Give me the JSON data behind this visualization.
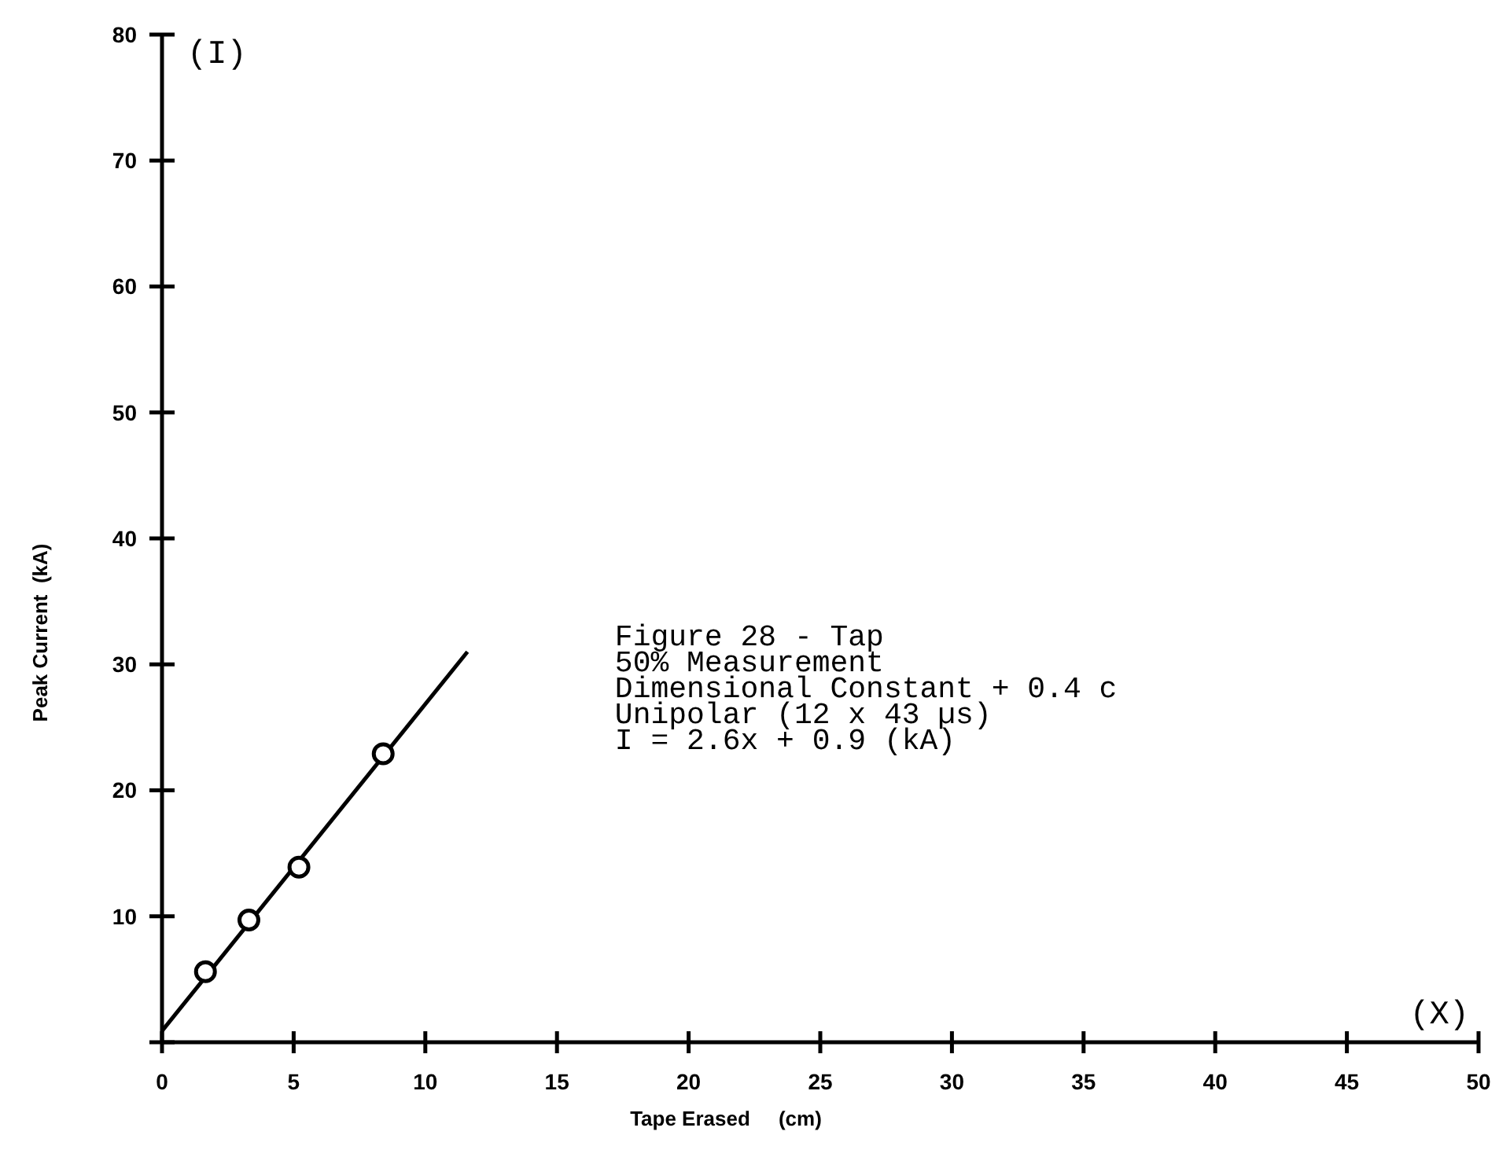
{
  "chart_data": {
    "type": "scatter",
    "xlabel": "Tape Erased     (cm)",
    "ylabel": "Peak Current  (kA)",
    "xlim": [
      0,
      50
    ],
    "xticks": [
      0,
      5,
      10,
      15,
      20,
      25,
      30,
      35,
      40,
      45,
      50
    ],
    "ylim": [
      0,
      80
    ],
    "yticks": [
      {
        "value": 0,
        "label": null
      },
      10,
      20,
      30,
      40,
      50,
      60,
      70,
      80
    ],
    "grid": false,
    "series": [
      {
        "marker": "circle",
        "color": "#000000",
        "x": [
          1.65,
          3.3,
          5.2,
          8.4
        ],
        "values": [
          5.6,
          9.7,
          13.9,
          22.9
        ]
      },
      {
        "type": "line",
        "marker": "none",
        "color": "#000000",
        "x": [
          0,
          11.6
        ],
        "values": [
          0.9,
          31
        ]
      }
    ],
    "annotations": [
      "(I)",
      "(X)",
      "Figure 28 - Tap",
      "50% Measurement",
      "Dimensional Constant + 0.4 c",
      "Unipolar (12 x 43 µs)",
      "I = 2.6x + 0.9 (kA)"
    ]
  }
}
